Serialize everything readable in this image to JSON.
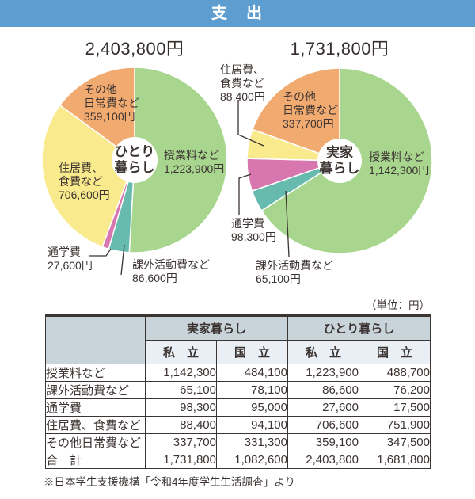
{
  "header": {
    "title": "支　出"
  },
  "totals": {
    "left": "2,403,800円",
    "right": "1,731,800円"
  },
  "colors": {
    "header_bg": "#5E9DD0",
    "text": "#3B3331",
    "green": "#A9D68F",
    "teal": "#66BAAE",
    "pink": "#D877AF",
    "yellow": "#F8EA8D",
    "orange": "#F1AB71",
    "table_header_bg": "#C9D3DA",
    "table_subheader_bg": "#E9EFF4",
    "border": "#3B3533"
  },
  "chart_data": [
    {
      "type": "pie",
      "name": "hitori-gurashi",
      "center_label": [
        "ひとり",
        "暮らし"
      ],
      "total": 2403800,
      "total_label": "2,403,800円",
      "start_angle": 0,
      "slices": [
        {
          "name": "授業料など",
          "value": 1223900,
          "color": "#A9D68F",
          "display": [
            "授業料など",
            "1,223,900円"
          ]
        },
        {
          "name": "課外活動費など",
          "value": 86600,
          "color": "#66BAAE",
          "display": [
            "課外活動費など",
            "86,600円"
          ]
        },
        {
          "name": "通学費",
          "value": 27600,
          "color": "#D877AF",
          "display": [
            "通学費",
            "27,600円"
          ]
        },
        {
          "name": "住居費、食費など",
          "value": 706600,
          "color": "#F8EA8D",
          "display": [
            "住居費、",
            "食費など",
            "706,600円"
          ]
        },
        {
          "name": "その他日常費など",
          "value": 359100,
          "color": "#F1AB71",
          "display": [
            "その他",
            "日常費など",
            "359,100円"
          ]
        }
      ]
    },
    {
      "type": "pie",
      "name": "jikka-gurashi",
      "center_label": [
        "実家",
        "暮らし"
      ],
      "total": 1731800,
      "total_label": "1,731,800円",
      "start_angle": 0,
      "slices": [
        {
          "name": "授業料など",
          "value": 1142300,
          "color": "#A9D68F",
          "display": [
            "授業料など",
            "1,142,300円"
          ]
        },
        {
          "name": "課外活動費など",
          "value": 65100,
          "color": "#66BAAE",
          "display": [
            "課外活動費など",
            "65,100円"
          ]
        },
        {
          "name": "通学費",
          "value": 98300,
          "color": "#D877AF",
          "display": [
            "通学費",
            "98,300円"
          ]
        },
        {
          "name": "住居費、食費など",
          "value": 88400,
          "color": "#F8EA8D",
          "display": [
            "住居費、",
            "食費など",
            "88,400円"
          ]
        },
        {
          "name": "その他日常費など",
          "value": 337700,
          "color": "#F1AB71",
          "display": [
            "その他",
            "日常費など",
            "337,700円"
          ]
        }
      ]
    },
    {
      "type": "table",
      "unit_note": "（単位：円）",
      "col_groups": [
        "実家暮らし",
        "ひとり暮らし"
      ],
      "sub_headers": [
        "私　立",
        "国　立",
        "私　立",
        "国　立"
      ],
      "rows": [
        {
          "label": "授業料など",
          "values": [
            "1,142,300",
            "484,100",
            "1,223,900",
            "488,700"
          ]
        },
        {
          "label": "課外活動費など",
          "values": [
            "65,100",
            "78,100",
            "86,600",
            "76,200"
          ]
        },
        {
          "label": "通学費",
          "values": [
            "98,300",
            "95,000",
            "27,600",
            "17,500"
          ]
        },
        {
          "label": "住居費、食費など",
          "values": [
            "88,400",
            "94,100",
            "706,600",
            "751,900"
          ]
        },
        {
          "label": "その他日常費など",
          "values": [
            "337,700",
            "331,300",
            "359,100",
            "347,500"
          ]
        },
        {
          "label": "合　計",
          "values": [
            "1,731,800",
            "1,082,600",
            "2,403,800",
            "1,681,800"
          ]
        }
      ],
      "footnote": "※日本学生支援機構「令和4年度学生生活調査」より"
    }
  ]
}
